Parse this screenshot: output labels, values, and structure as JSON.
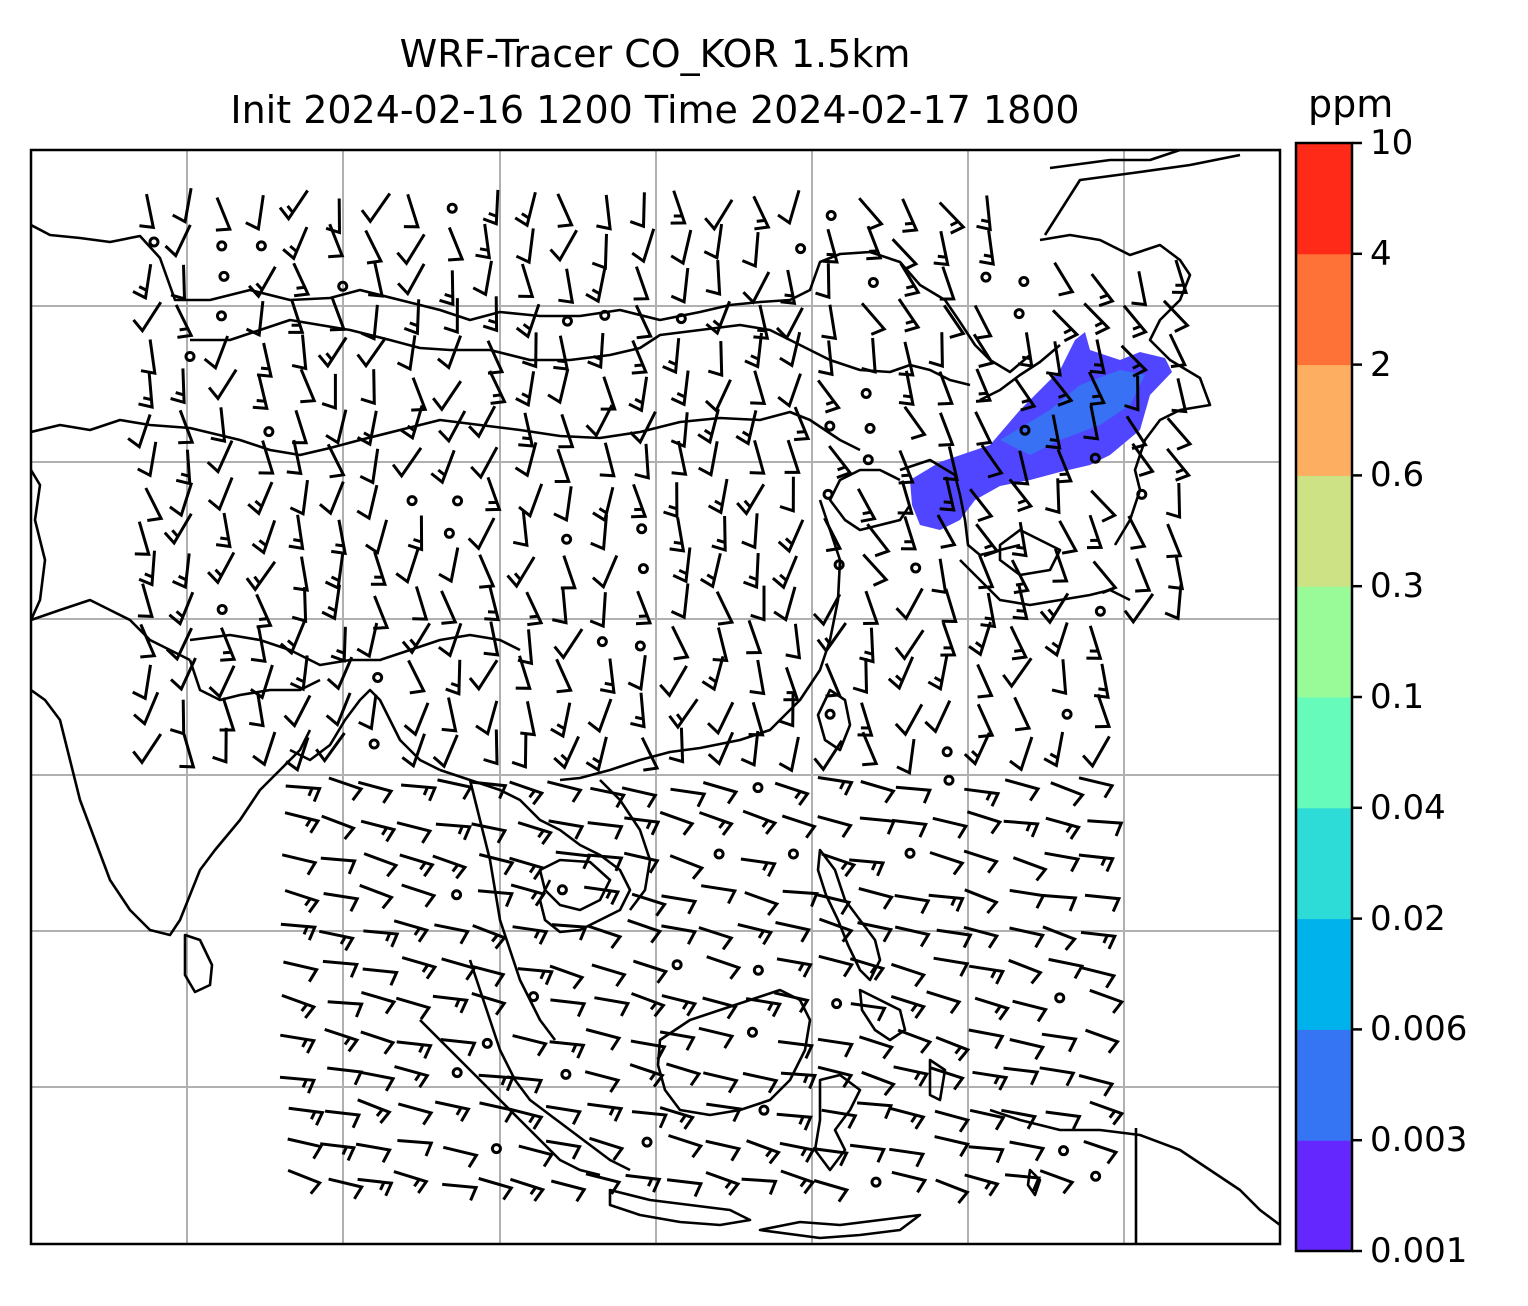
{
  "title": {
    "line1": "WRF-Tracer CO_KOR 1.5km",
    "line2": "Init 2024-02-16 1200 Time 2024-02-17 1800"
  },
  "colorbar": {
    "unit": "ppm",
    "levels": [
      "0.001",
      "0.003",
      "0.006",
      "0.02",
      "0.04",
      "0.1",
      "0.3",
      "0.6",
      "2",
      "4",
      "10"
    ],
    "colors": [
      "#6428ff",
      "#3575f3",
      "#00b2ec",
      "#2ddbd7",
      "#66fbbb",
      "#99fb98",
      "#cde185",
      "#feae60",
      "#fe7137",
      "#ff2a17"
    ]
  },
  "map": {
    "features": [
      "coastlines",
      "gridlines",
      "wind-barbs",
      "tracer-plume"
    ],
    "plume_color": "#5046ff",
    "grid_color": "#b0b0b0"
  }
}
